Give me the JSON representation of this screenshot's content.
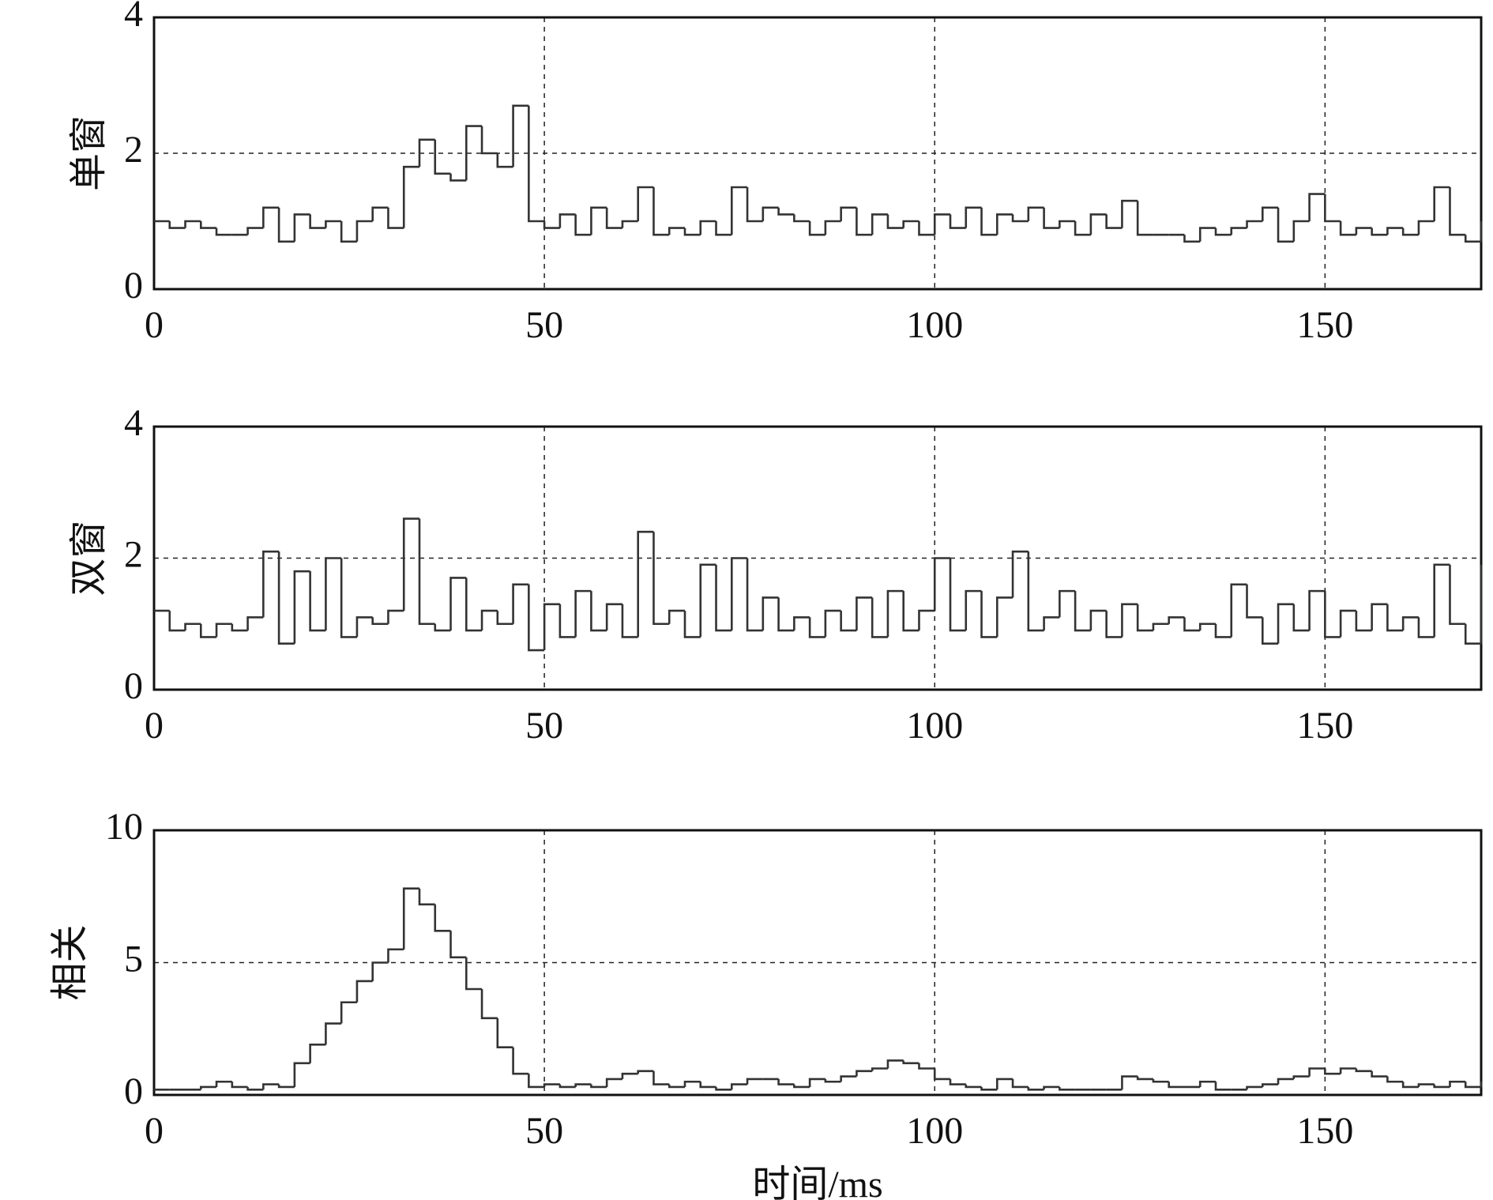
{
  "chart_data": [
    {
      "type": "line",
      "drawstyle": "steps",
      "ylabel": "单窗",
      "grid": true,
      "xlim": [
        0,
        170
      ],
      "xticks": [
        0,
        50,
        100,
        150
      ],
      "ylim": [
        0,
        4
      ],
      "yticks": [
        0,
        2,
        4
      ],
      "x": [
        0,
        2,
        4,
        6,
        8,
        10,
        12,
        14,
        16,
        18,
        20,
        22,
        24,
        26,
        28,
        30,
        32,
        34,
        36,
        38,
        40,
        42,
        44,
        46,
        48,
        50,
        52,
        54,
        56,
        58,
        60,
        62,
        64,
        66,
        68,
        70,
        72,
        74,
        76,
        78,
        80,
        82,
        84,
        86,
        88,
        90,
        92,
        94,
        96,
        98,
        100,
        102,
        104,
        106,
        108,
        110,
        112,
        114,
        116,
        118,
        120,
        122,
        124,
        126,
        128,
        130,
        132,
        134,
        136,
        138,
        140,
        142,
        144,
        146,
        148,
        150,
        152,
        154,
        156,
        158,
        160,
        162,
        164,
        166,
        168,
        170
      ],
      "series": [
        {
          "color": "#333333",
          "values": [
            1.0,
            0.9,
            1.0,
            0.9,
            0.8,
            0.8,
            0.9,
            1.2,
            0.7,
            1.1,
            0.9,
            1.0,
            0.7,
            1.0,
            1.2,
            0.9,
            1.8,
            2.2,
            1.7,
            1.6,
            2.4,
            2.0,
            1.8,
            2.7,
            1.0,
            0.9,
            1.1,
            0.8,
            1.2,
            0.9,
            1.0,
            1.5,
            0.8,
            0.9,
            0.8,
            1.0,
            0.8,
            1.5,
            1.0,
            1.2,
            1.1,
            1.0,
            0.8,
            1.0,
            1.2,
            0.8,
            1.1,
            0.9,
            1.0,
            0.8,
            1.1,
            0.9,
            1.2,
            0.8,
            1.1,
            1.0,
            1.2,
            0.9,
            1.0,
            0.8,
            1.1,
            0.9,
            1.3,
            0.8,
            0.8,
            0.8,
            0.7,
            0.9,
            0.8,
            0.9,
            1.0,
            1.2,
            0.7,
            1.0,
            1.4,
            1.0,
            0.8,
            0.9,
            0.8,
            0.9,
            0.8,
            1.0,
            1.5,
            0.8,
            0.7,
            1.0
          ]
        }
      ]
    },
    {
      "type": "line",
      "drawstyle": "steps",
      "ylabel": "双窗",
      "grid": true,
      "xlim": [
        0,
        170
      ],
      "xticks": [
        0,
        50,
        100,
        150
      ],
      "ylim": [
        0,
        4
      ],
      "yticks": [
        0,
        2,
        4
      ],
      "x": [
        0,
        2,
        4,
        6,
        8,
        10,
        12,
        14,
        16,
        18,
        20,
        22,
        24,
        26,
        28,
        30,
        32,
        34,
        36,
        38,
        40,
        42,
        44,
        46,
        48,
        50,
        52,
        54,
        56,
        58,
        60,
        62,
        64,
        66,
        68,
        70,
        72,
        74,
        76,
        78,
        80,
        82,
        84,
        86,
        88,
        90,
        92,
        94,
        96,
        98,
        100,
        102,
        104,
        106,
        108,
        110,
        112,
        114,
        116,
        118,
        120,
        122,
        124,
        126,
        128,
        130,
        132,
        134,
        136,
        138,
        140,
        142,
        144,
        146,
        148,
        150,
        152,
        154,
        156,
        158,
        160,
        162,
        164,
        166,
        168,
        170
      ],
      "series": [
        {
          "color": "#333333",
          "values": [
            1.2,
            0.9,
            1.0,
            0.8,
            1.0,
            0.9,
            1.1,
            2.1,
            0.7,
            1.8,
            0.9,
            2.0,
            0.8,
            1.1,
            1.0,
            1.2,
            2.6,
            1.0,
            0.9,
            1.7,
            0.9,
            1.2,
            1.0,
            1.6,
            0.6,
            1.3,
            0.8,
            1.5,
            0.9,
            1.3,
            0.8,
            2.4,
            1.0,
            1.2,
            0.8,
            1.9,
            0.9,
            2.0,
            0.9,
            1.4,
            0.9,
            1.1,
            0.8,
            1.2,
            0.9,
            1.4,
            0.8,
            1.5,
            0.9,
            1.2,
            2.0,
            0.9,
            1.5,
            0.8,
            1.4,
            2.1,
            0.9,
            1.1,
            1.5,
            0.9,
            1.2,
            0.8,
            1.3,
            0.9,
            1.0,
            1.1,
            0.9,
            1.0,
            0.8,
            1.6,
            1.1,
            0.7,
            1.3,
            0.9,
            1.5,
            0.8,
            1.2,
            0.9,
            1.3,
            0.9,
            1.1,
            0.8,
            1.9,
            1.0,
            0.7,
            1.9
          ]
        }
      ]
    },
    {
      "type": "line",
      "drawstyle": "steps",
      "ylabel": "相关",
      "xlabel": "时间/ms",
      "grid": true,
      "xlim": [
        0,
        170
      ],
      "xticks": [
        0,
        50,
        100,
        150
      ],
      "ylim": [
        0,
        10
      ],
      "yticks": [
        0,
        5,
        10
      ],
      "x": [
        0,
        2,
        4,
        6,
        8,
        10,
        12,
        14,
        16,
        18,
        20,
        22,
        24,
        26,
        28,
        30,
        32,
        34,
        36,
        38,
        40,
        42,
        44,
        46,
        48,
        50,
        52,
        54,
        56,
        58,
        60,
        62,
        64,
        66,
        68,
        70,
        72,
        74,
        76,
        78,
        80,
        82,
        84,
        86,
        88,
        90,
        92,
        94,
        96,
        98,
        100,
        102,
        104,
        106,
        108,
        110,
        112,
        114,
        116,
        118,
        120,
        122,
        124,
        126,
        128,
        130,
        132,
        134,
        136,
        138,
        140,
        142,
        144,
        146,
        148,
        150,
        152,
        154,
        156,
        158,
        160,
        162,
        164,
        166,
        168,
        170
      ],
      "series": [
        {
          "color": "#333333",
          "values": [
            0.2,
            0.2,
            0.2,
            0.3,
            0.5,
            0.3,
            0.2,
            0.4,
            0.3,
            1.2,
            1.9,
            2.7,
            3.5,
            4.3,
            5.0,
            5.5,
            7.8,
            7.2,
            6.2,
            5.2,
            4.0,
            2.9,
            1.8,
            0.8,
            0.3,
            0.4,
            0.3,
            0.4,
            0.3,
            0.6,
            0.8,
            0.9,
            0.4,
            0.3,
            0.5,
            0.3,
            0.2,
            0.4,
            0.6,
            0.6,
            0.4,
            0.3,
            0.6,
            0.5,
            0.7,
            0.9,
            1.0,
            1.3,
            1.2,
            1.0,
            0.6,
            0.4,
            0.3,
            0.2,
            0.6,
            0.3,
            0.2,
            0.3,
            0.2,
            0.2,
            0.2,
            0.2,
            0.7,
            0.6,
            0.5,
            0.3,
            0.3,
            0.5,
            0.2,
            0.2,
            0.3,
            0.4,
            0.6,
            0.7,
            1.0,
            0.8,
            1.0,
            0.9,
            0.7,
            0.5,
            0.3,
            0.4,
            0.3,
            0.5,
            0.3,
            0.5
          ]
        }
      ]
    }
  ]
}
